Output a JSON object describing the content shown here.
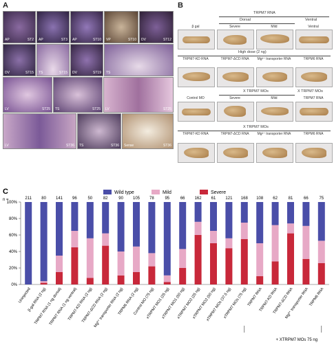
{
  "panel_a": {
    "letter": "A",
    "tiles": [
      {
        "label": "AP",
        "stage": "ST2"
      },
      {
        "label": "AP",
        "stage": "ST3"
      },
      {
        "label": "AP",
        "stage": "ST10"
      },
      {
        "label": "VP",
        "stage": "ST10"
      },
      {
        "label": "DV",
        "stage": "ST12"
      },
      {
        "label": "DV",
        "stage": "ST15"
      },
      {
        "label": "TS",
        "stage": "ST15"
      },
      {
        "label": "DV",
        "stage": "ST19"
      },
      {
        "label": "TS",
        "stage": ""
      },
      {
        "label": "LV",
        "stage": "ST25"
      },
      {
        "label": "TS",
        "stage": "ST25"
      },
      {
        "label": "LV",
        "stage": "ST25"
      },
      {
        "label": "LV",
        "stage": "ST36"
      },
      {
        "label": "TS",
        "stage": "ST36"
      },
      {
        "label": "Sense",
        "stage": "ST36"
      }
    ]
  },
  "panel_b": {
    "letter": "B",
    "header_rnatop": "TRPM7 RNA",
    "row1_group": [
      "Dorsal",
      "Ventral"
    ],
    "row1": [
      "β gal",
      "Severe",
      "Mild",
      "Ventral"
    ],
    "high_dose": "High dose (2 ng)",
    "row2": [
      "TRPM7-KD RNA",
      "TRPM7-ΔCD RNA",
      "Mg²⁺ transporter RNA",
      "TRPM6 RNA"
    ],
    "row3_group": "X TRPM7 MOs",
    "row3_group2": "X TRPM7 MOs",
    "row3": [
      "Control MO",
      "Severe",
      "Mild",
      "TRPM7 RNA"
    ],
    "row4_group": "X TRPM7 MOs",
    "row4": [
      "TRPM7-KD RNA",
      "TRPM7-ΔCD RNA",
      "Mg²⁺ transporter RNA",
      "TRPM6 RNA"
    ]
  },
  "chart_data": {
    "type": "bar",
    "stacked": true,
    "panel_letter": "C",
    "n_label": "n =",
    "legend": [
      "Wild type",
      "Mild",
      "Severe"
    ],
    "colors": {
      "wild": "#4a4ea8",
      "mild": "#e7a9c6",
      "severe": "#c8283a"
    },
    "ylim": [
      0,
      100
    ],
    "yticks": [
      "0%",
      "20%",
      "40%",
      "60%",
      "80%",
      "100%"
    ],
    "categories": [
      "Uninjected",
      "β-gal RNA (2 ng)",
      "TRPM7 RNA (1 ng dorsal)",
      "TRPM7 RNA (1 ng ventral)",
      "TRPM7-KD RNA (2 ng)",
      "TRPM7-ΔCD RNA (2 ng)",
      "Mg²⁺ transporter RNA (2 ng)",
      "TRPM6 RNA (2 ng)",
      "Control MO (75 ng)",
      "xTRPM7 MO1 (25 ng)",
      "xTRPM7 MO1 (50 ng)",
      "xTRPM7 MO2 (25 ng)",
      "xTRPM7 MO2 (50 ng)",
      "xTRPM7 MOs (37.5 ng)",
      "xTRPM7 MOs (75 ng)",
      "TRPM7 RNA",
      "TRPM7-KD RNA",
      "TRPM7-ΔCD RNA",
      "Mg²⁺ transporter RNA",
      "TRPM6 RNA"
    ],
    "n_values": [
      "211",
      "80",
      "141",
      "96",
      "50",
      "82",
      "90",
      "105",
      "78",
      "95",
      "66",
      "162",
      "61",
      "121",
      "168",
      "108",
      "62",
      "81",
      "66",
      "75"
    ],
    "series": [
      {
        "name": "Severe",
        "values": [
          0,
          2,
          15,
          45,
          8,
          47,
          11,
          15,
          22,
          3,
          20,
          60,
          50,
          44,
          55,
          10,
          28,
          62,
          31,
          26
        ]
      },
      {
        "name": "Mild",
        "values": [
          0,
          2,
          20,
          20,
          48,
          15,
          29,
          31,
          16,
          8,
          23,
          16,
          15,
          12,
          20,
          40,
          44,
          12,
          40,
          27
        ]
      },
      {
        "name": "Wild type",
        "values": [
          100,
          96,
          65,
          35,
          44,
          38,
          60,
          54,
          62,
          89,
          57,
          24,
          35,
          44,
          25,
          50,
          28,
          26,
          29,
          47
        ]
      }
    ],
    "bracket_label": "+ XTRPM7 MOs 75 ng"
  }
}
